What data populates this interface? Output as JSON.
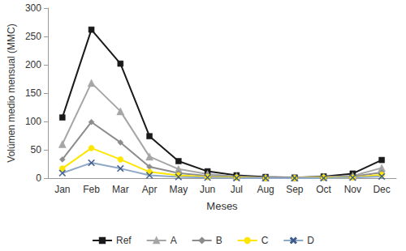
{
  "chart_data": {
    "type": "line",
    "x_label": "Meses",
    "y_label": "Volúmen medio mensual (MMC)",
    "categories": [
      "Jan",
      "Feb",
      "Mar",
      "Apr",
      "May",
      "Jun",
      "Jul",
      "Aug",
      "Sep",
      "Oct",
      "Nov",
      "Dec"
    ],
    "series": [
      {
        "name": "Ref",
        "color": "#1a1a1a",
        "marker": "square",
        "values": [
          107,
          262,
          202,
          74,
          30,
          12,
          5,
          2,
          1,
          3,
          8,
          32
        ]
      },
      {
        "name": "A",
        "color": "#a6a6a6",
        "marker": "triangle",
        "values": [
          60,
          168,
          118,
          38,
          16,
          7,
          3,
          1,
          1,
          2,
          4,
          18
        ]
      },
      {
        "name": "B",
        "color": "#8c8c8c",
        "marker": "diamond",
        "values": [
          33,
          99,
          63,
          20,
          9,
          4,
          2,
          1,
          0,
          1,
          3,
          10
        ]
      },
      {
        "name": "C",
        "color": "#ffe600",
        "marker": "circle",
        "values": [
          17,
          53,
          33,
          11,
          5,
          2,
          1,
          0,
          0,
          1,
          1,
          6
        ]
      },
      {
        "name": "D",
        "color": "#8fa8c8",
        "marker": "x",
        "values": [
          9,
          27,
          17,
          5,
          2,
          1,
          0,
          0,
          0,
          0,
          1,
          3
        ]
      }
    ],
    "ylim": [
      0,
      300
    ],
    "yticks": [
      0,
      50,
      100,
      150,
      200,
      250,
      300
    ],
    "grid": false,
    "legend": "bottom"
  }
}
